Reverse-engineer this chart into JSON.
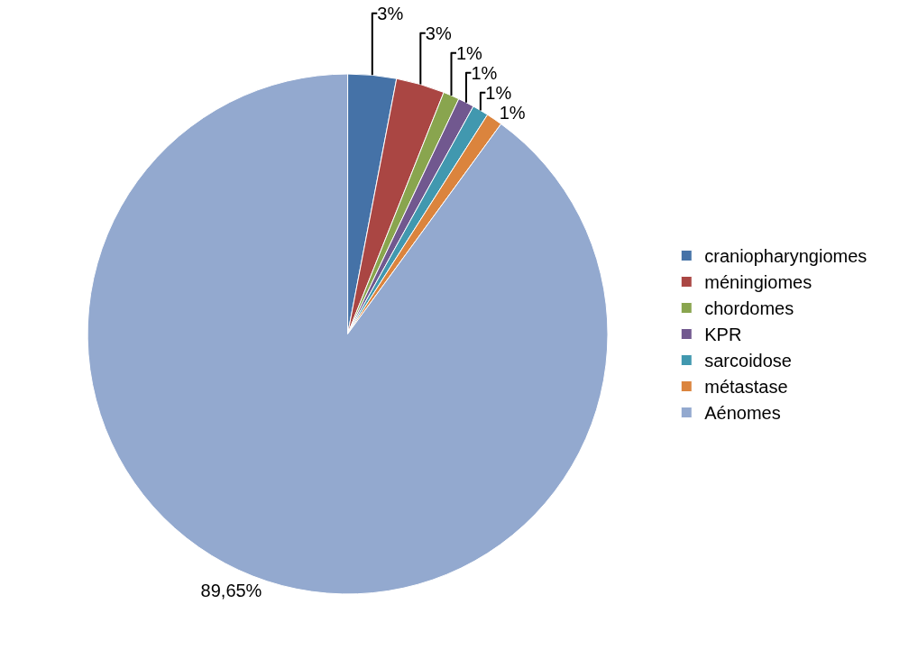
{
  "chart_data": {
    "type": "pie",
    "categories": [
      "craniopharyngiomes",
      "méningiomes",
      "chordomes",
      "KPR",
      "sarcoidose",
      "métastase",
      "Aénomes"
    ],
    "values": [
      3,
      3,
      1,
      1,
      1,
      1,
      89.65
    ],
    "value_labels": [
      "3%",
      "3%",
      "1%",
      "1%",
      "1%",
      "1%",
      "89,65%"
    ],
    "colors": [
      "#4572a7",
      "#aa4643",
      "#89a54e",
      "#71588f",
      "#4198af",
      "#db843d",
      "#93a9cf"
    ],
    "legend": "right"
  }
}
